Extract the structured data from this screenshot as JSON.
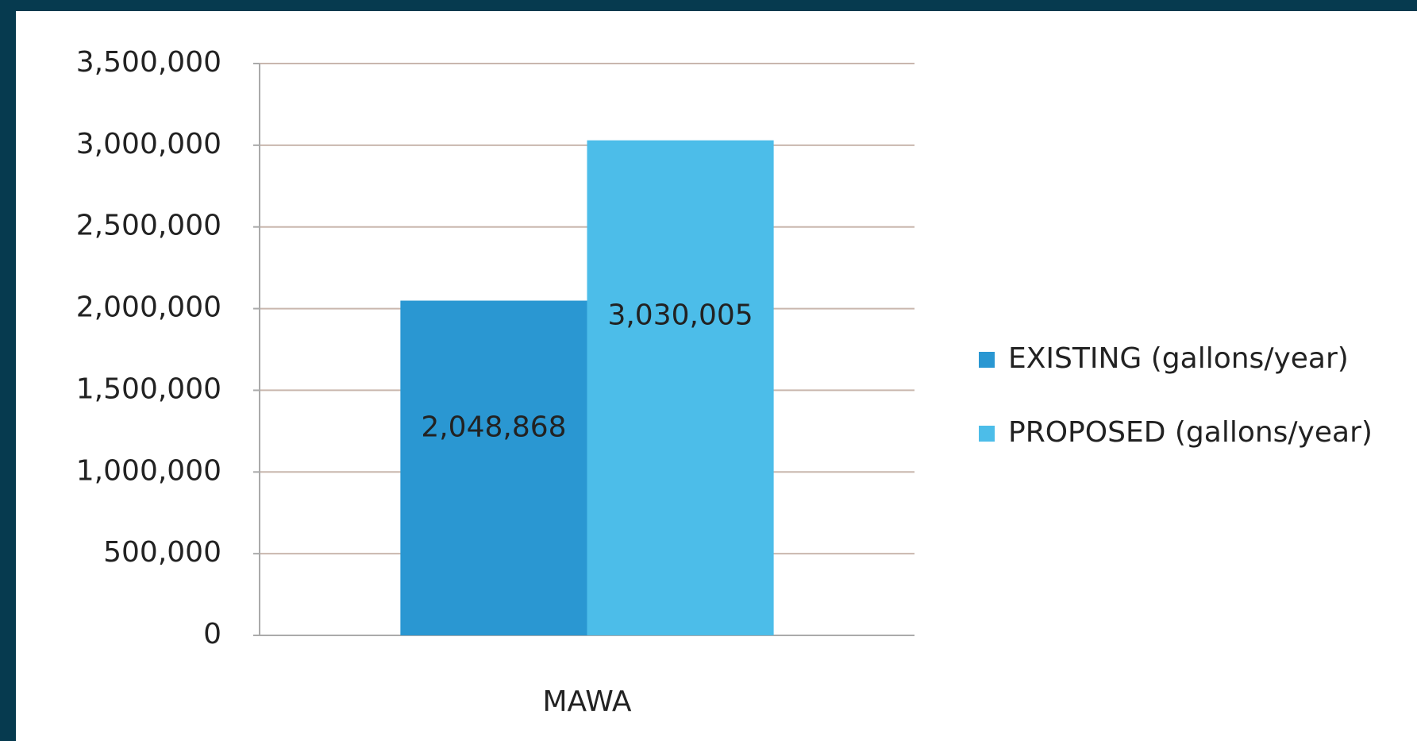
{
  "chart_data": {
    "type": "bar",
    "categories": [
      "MAWA"
    ],
    "series": [
      {
        "name": "EXISTING (gallons/year)",
        "color": "#2a97d2",
        "values": [
          2048868
        ],
        "value_labels": [
          "2,048,868"
        ]
      },
      {
        "name": "PROPOSED (gallons/year)",
        "color": "#4cbde9",
        "values": [
          3030005
        ],
        "value_labels": [
          "3,030,005"
        ]
      }
    ],
    "ylim": [
      0,
      3500000
    ],
    "yticks": [
      0,
      {
        "value": 500000,
        "label": "500,000"
      },
      {
        "value": 1000000,
        "label": "1,000,000"
      },
      {
        "value": 1500000,
        "label": "1,500,000"
      },
      {
        "value": 2000000,
        "label": "2,000,000"
      },
      {
        "value": 2500000,
        "label": "2,500,000"
      },
      {
        "value": 3000000,
        "label": "3,000,000"
      },
      {
        "value": 3500000,
        "label": "3,500,000"
      }
    ],
    "grid": true,
    "legend": "right"
  }
}
